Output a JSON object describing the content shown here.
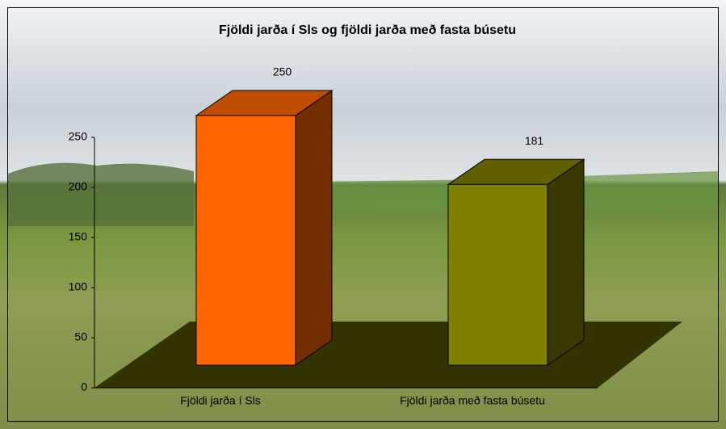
{
  "chart_data": {
    "type": "bar3d",
    "title": "Fjöldi jarða í Sls og fjöldi jarða með fasta búsetu",
    "categories": [
      "Fjöldi jarða í Sls",
      "Fjöldi jarða með fasta búsetu"
    ],
    "values": [
      250,
      181
    ],
    "colors": [
      "#ff6600",
      "#808000"
    ],
    "ylim": [
      0,
      250
    ],
    "yticks": [
      0,
      50,
      100,
      150,
      200,
      250
    ]
  }
}
